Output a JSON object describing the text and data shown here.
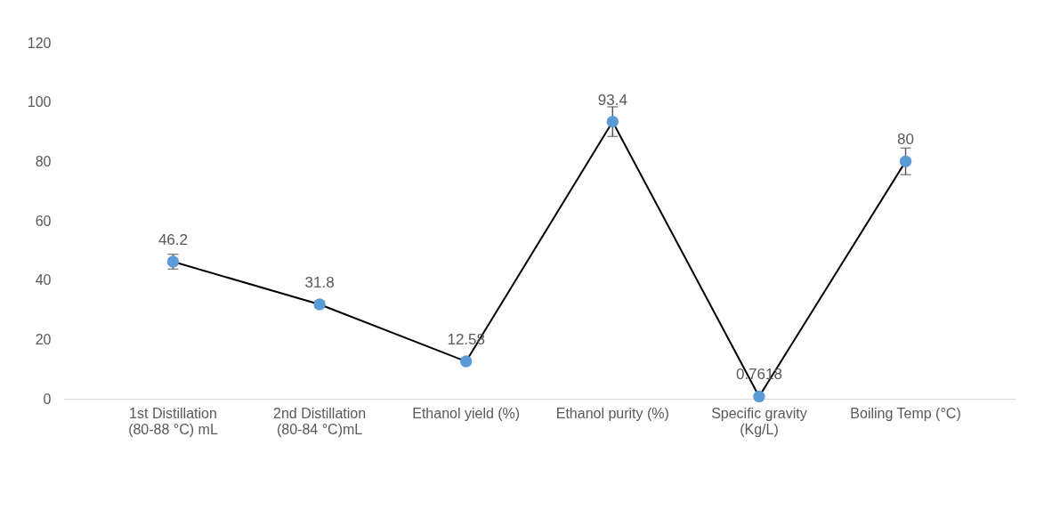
{
  "chart_data": {
    "type": "line",
    "categories": [
      "1st Distillation (80-88 °C) mL",
      "2nd Distillation (80-84 °C)mL",
      "Ethanol yield (%)",
      "Ethanol purity (%)",
      "Specific gravity (Kg/L)",
      "Boiling Temp (°C)"
    ],
    "series": [
      {
        "color": "#5b9bd5",
        "values": [
          46.2,
          31.8,
          12.58,
          93.4,
          0.7618,
          80
        ],
        "errors": [
          2.5,
          1,
          null,
          5,
          null,
          4.5
        ]
      }
    ],
    "marker": "circle",
    "line_style": "solid",
    "data_labels": true,
    "grid": false,
    "ylim": [
      0,
      120
    ],
    "yticks": [
      0,
      20,
      40,
      60,
      80,
      100,
      120
    ]
  }
}
